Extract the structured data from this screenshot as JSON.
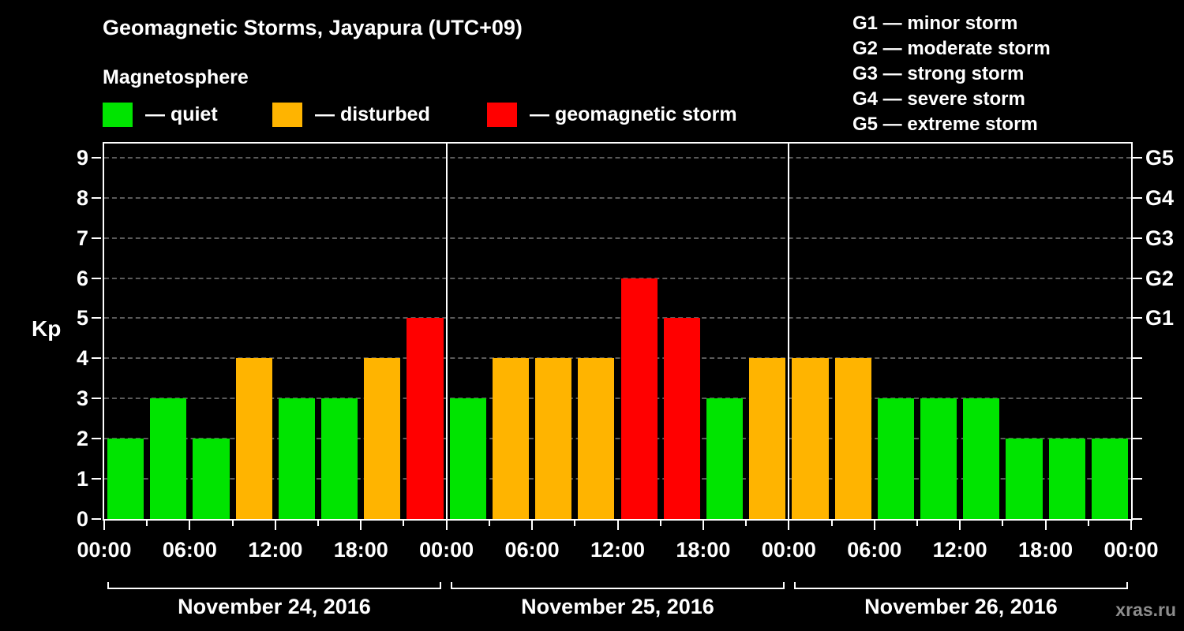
{
  "title": "Geomagnetic Storms, Jayapura (UTC+09)",
  "subtitle": "Magnetosphere",
  "kp_legend": {
    "items": [
      {
        "label": "— quiet",
        "status": "quiet",
        "color": "#00e400"
      },
      {
        "label": "— disturbed",
        "status": "disturbed",
        "color": "#ffb400"
      },
      {
        "label": "— geomagnetic storm",
        "status": "storm",
        "color": "#ff0000"
      }
    ]
  },
  "g_scale_legend": {
    "items": [
      {
        "label": "G1 — minor storm"
      },
      {
        "label": "G2 — moderate storm"
      },
      {
        "label": "G3 — strong storm"
      },
      {
        "label": "G4 — severe storm"
      },
      {
        "label": "G5 — extreme storm"
      }
    ]
  },
  "watermark": "xras.ru",
  "chart_data": {
    "type": "bar",
    "title": "Geomagnetic Storms, Jayapura (UTC+09)",
    "ylabel": "Kp",
    "ylim": [
      0,
      9.35
    ],
    "grid": "dashed horizontal",
    "legend_position": "top-left",
    "interval_hours": 3,
    "y_ticks": [
      0,
      1,
      2,
      3,
      4,
      5,
      6,
      7,
      8,
      9
    ],
    "x_tick_hours": [
      0,
      6,
      12,
      18,
      24,
      30,
      36,
      42,
      48,
      54,
      60,
      66,
      72
    ],
    "x_tick_labels": [
      "00:00",
      "06:00",
      "12:00",
      "18:00",
      "00:00",
      "06:00",
      "12:00",
      "18:00",
      "00:00",
      "06:00",
      "12:00",
      "18:00",
      "00:00"
    ],
    "right_axis": [
      {
        "kp": 5,
        "label": "G1"
      },
      {
        "kp": 6,
        "label": "G2"
      },
      {
        "kp": 7,
        "label": "G3"
      },
      {
        "kp": 8,
        "label": "G4"
      },
      {
        "kp": 9,
        "label": "G5"
      }
    ],
    "colors": {
      "quiet": "#00e400",
      "disturbed": "#ffb400",
      "storm": "#ff0000"
    },
    "color_rule": "kp <= 3 quiet, kp == 4 disturbed, kp >= 5 storm",
    "days": [
      {
        "date": "November 24, 2016",
        "values": [
          2,
          3,
          2,
          4,
          3,
          3,
          4,
          5
        ]
      },
      {
        "date": "November 25, 2016",
        "values": [
          3,
          4,
          4,
          4,
          6,
          5,
          3,
          4
        ]
      },
      {
        "date": "November 26, 2016",
        "values": [
          4,
          4,
          3,
          3,
          3,
          2,
          2,
          2
        ]
      }
    ]
  }
}
